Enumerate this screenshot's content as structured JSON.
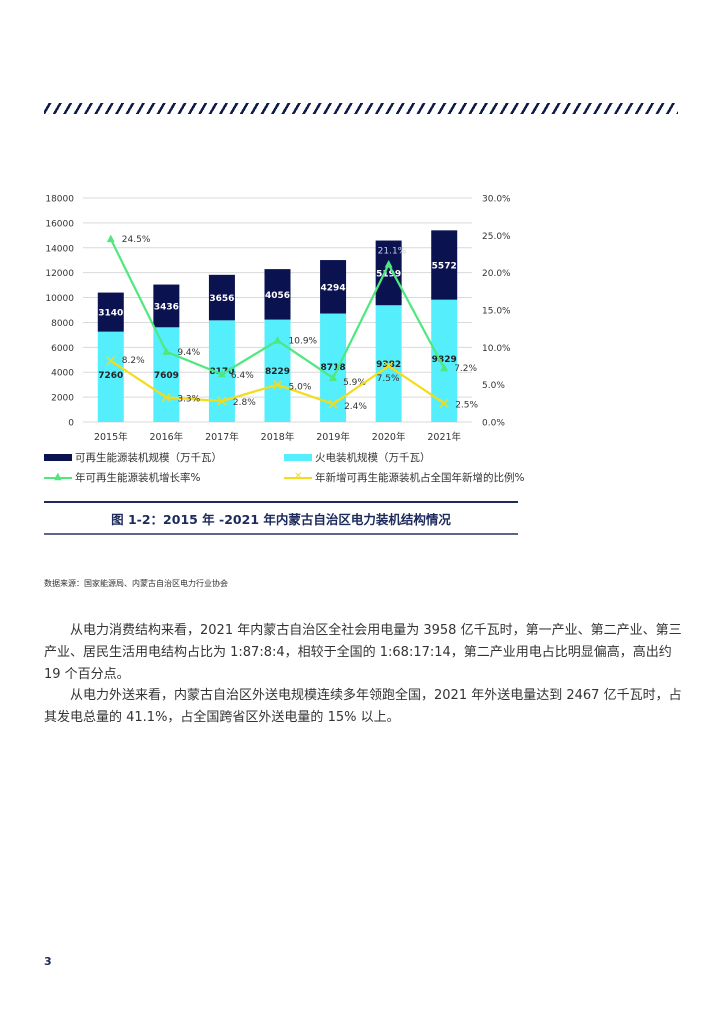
{
  "page": {
    "page_number": "3"
  },
  "figure": {
    "caption": "图 1-2：2015 年 -2021 年内蒙古自治区电力装机结构情况",
    "source": "数据来源：国家能源局、内蒙古自治区电力行业协会"
  },
  "legend": {
    "renewable": "可再生能源装机规模（万千瓦）",
    "thermal": "火电装机规模（万千瓦）",
    "growth": "年可再生能源装机增长率%",
    "share": "年新增可再生能源装机占全国年新增的比例%"
  },
  "colors": {
    "renewable": "#0a1250",
    "thermal": "#55eefc",
    "growth": "#4ee87f",
    "share": "#f2dc1c",
    "grid": "#d9d9d9",
    "accent": "#1c2a5c"
  },
  "chart_data": {
    "type": "bar",
    "subtype": "stacked bar with dual-axis lines",
    "title": "图 1-2：2015 年 -2021 年内蒙古自治区电力装机结构情况",
    "categories": [
      "2015年",
      "2016年",
      "2017年",
      "2018年",
      "2019年",
      "2020年",
      "2021年"
    ],
    "series": [
      {
        "name": "火电装机规模（万千瓦）",
        "type": "bar",
        "axis": "left",
        "values": [
          7260,
          7609,
          8170,
          8229,
          8718,
          9382,
          9829
        ]
      },
      {
        "name": "可再生能源装机规模（万千瓦）",
        "type": "bar",
        "axis": "left",
        "values": [
          3140,
          3436,
          3656,
          4056,
          4294,
          5199,
          5572
        ]
      },
      {
        "name": "年可再生能源装机增长率%",
        "type": "line",
        "axis": "right",
        "marker": "triangle",
        "values": [
          24.5,
          9.4,
          6.4,
          10.9,
          5.9,
          21.1,
          7.2
        ]
      },
      {
        "name": "年新增可再生能源装机占全国年新增的比例%",
        "type": "line",
        "axis": "right",
        "marker": "x",
        "values": [
          8.2,
          3.3,
          2.8,
          5.0,
          2.4,
          7.5,
          2.5
        ]
      }
    ],
    "left_axis": {
      "ylim": [
        0,
        18000
      ],
      "ticks": [
        "0",
        "2000",
        "4000",
        "6000",
        "8000",
        "10000",
        "12000",
        "14000",
        "16000",
        "18000"
      ]
    },
    "right_axis": {
      "ylim": [
        0,
        30
      ],
      "ticks": [
        "0.0%",
        "5.0%",
        "10.0%",
        "15.0%",
        "20.0%",
        "25.0%",
        "30.0%"
      ]
    },
    "growth_labels": [
      "24.5%",
      "9.4%",
      "6.4%",
      "10.9%",
      "5.9%",
      "21.1%",
      "7.2%"
    ],
    "share_labels": [
      "8.2%",
      "3.3%",
      "2.8%",
      "5.0%",
      "2.4%",
      "7.5%",
      "2.5%"
    ],
    "xlabel": "",
    "ylabel": "",
    "grid": true,
    "legend_position": "bottom"
  },
  "body": {
    "paragraph1": "从电力消费结构来看，2021 年内蒙古自治区全社会用电量为 3958 亿千瓦时，第一产业、第二产业、第三产业、居民生活用电结构占比为 1:87:8:4，相较于全国的 1:68:17:14，第二产业用电占比明显偏高，高出约 19 个百分点。",
    "paragraph2": "从电力外送来看，内蒙古自治区外送电规模连续多年领跑全国，2021 年外送电量达到 2467 亿千瓦时，占其发电总量的 41.1%，占全国跨省区外送电量的 15% 以上。"
  }
}
